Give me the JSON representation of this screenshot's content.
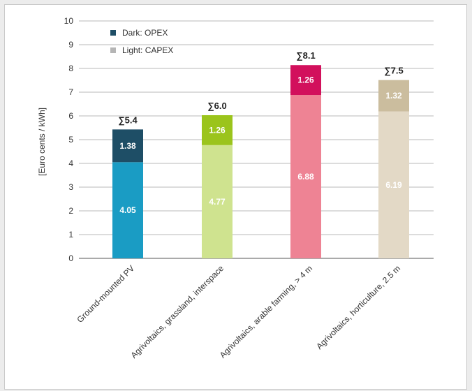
{
  "chart_data": {
    "type": "bar",
    "stacked": true,
    "ylabel": "[Euro cents / kWh]",
    "ylim": [
      0,
      10
    ],
    "yticks": [
      0,
      1,
      2,
      3,
      4,
      5,
      6,
      7,
      8,
      9,
      10
    ],
    "grid": true,
    "legend_position": "top-left",
    "legend": [
      {
        "label": "Dark: OPEX",
        "color": "#1e4e66"
      },
      {
        "label": "Light: CAPEX",
        "color": "#b5b5b5"
      }
    ],
    "categories": [
      "Ground-mounted PV",
      "Agrivoltaics, grassland, interspace",
      "Agrivoltaics, arable farming, > 4 m",
      "Agrivoltaics, horticulture, 2.5 m"
    ],
    "series": [
      {
        "name": "Light: CAPEX",
        "values": [
          4.05,
          4.77,
          6.88,
          6.19
        ],
        "labels": [
          "4.05",
          "4.77",
          "6.88",
          "6.19"
        ],
        "colors": [
          "#1a9cc4",
          "#cfe38f",
          "#ee8394",
          "#e3d9c6"
        ]
      },
      {
        "name": "Dark: OPEX",
        "values": [
          1.38,
          1.26,
          1.26,
          1.32
        ],
        "labels": [
          "1.38",
          "1.26",
          "1.26",
          "1.32"
        ],
        "colors": [
          "#1e4e66",
          "#9bc41c",
          "#d2105c",
          "#cbbd9e"
        ]
      }
    ],
    "totals": [
      "∑5.4",
      "∑6.0",
      "∑8.1",
      "∑7.5"
    ]
  }
}
